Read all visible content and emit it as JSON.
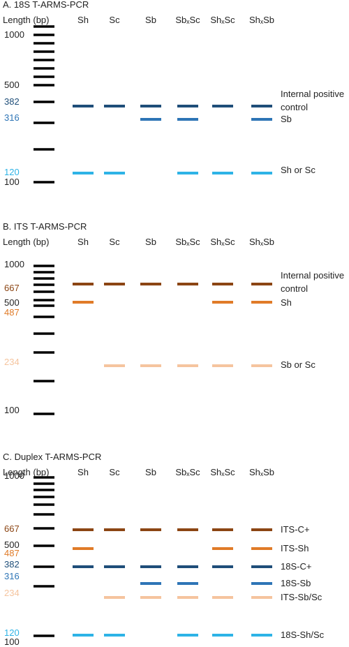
{
  "colors": {
    "ladder": "#000000",
    "blue_dark": "#1f4e79",
    "blue_mid": "#2e75b6",
    "blue_light": "#2eb3e6",
    "brown_dark": "#8b4513",
    "brown_mid": "#e07b28",
    "peach": "#f5c49e"
  },
  "panels": [
    {
      "title": "A. 18S T-ARMS-PCR",
      "length_label": "Length (bp)",
      "lanes": [
        "Sh",
        "Sc",
        "Sb",
        "SbₓSc",
        "ShₓSc",
        "ShₓSb"
      ],
      "ladder_labels": [
        {
          "text": "1000",
          "color": "#222222"
        },
        {
          "text": "500",
          "color": "#222222"
        },
        {
          "text": "382",
          "color": "#1f4e79"
        },
        {
          "text": "316",
          "color": "#2e75b6"
        },
        {
          "text": "120",
          "color": "#2eb3e6"
        },
        {
          "text": "100",
          "color": "#222222"
        }
      ],
      "band_rows": [
        {
          "name": "382",
          "color": "#1f4e79",
          "lanes": [
            1,
            1,
            1,
            1,
            1,
            1
          ],
          "label_lines": [
            "Internal positive",
            "control"
          ]
        },
        {
          "name": "316",
          "color": "#2e75b6",
          "lanes": [
            0,
            0,
            1,
            1,
            0,
            1
          ],
          "label_lines": [
            "Sb"
          ]
        },
        {
          "name": "120",
          "color": "#2eb3e6",
          "lanes": [
            1,
            1,
            0,
            1,
            1,
            1
          ],
          "label_lines": [
            "Sh or Sc"
          ]
        }
      ]
    },
    {
      "title": "B. ITS T-ARMS-PCR",
      "length_label": "Length (bp)",
      "lanes": [
        "Sh",
        "Sc",
        "Sb",
        "SbₓSc",
        "ShₓSc",
        "ShₓSb"
      ],
      "ladder_labels": [
        {
          "text": "1000",
          "color": "#222222"
        },
        {
          "text": "667",
          "color": "#8b4513"
        },
        {
          "text": "500",
          "color": "#222222"
        },
        {
          "text": "487",
          "color": "#e07b28"
        },
        {
          "text": "234",
          "color": "#f5c49e"
        },
        {
          "text": "100",
          "color": "#222222"
        }
      ],
      "band_rows": [
        {
          "name": "667",
          "color": "#8b4513",
          "lanes": [
            1,
            1,
            1,
            1,
            1,
            1
          ],
          "label_lines": [
            "Internal positive",
            "control"
          ]
        },
        {
          "name": "487",
          "color": "#e07b28",
          "lanes": [
            1,
            0,
            0,
            0,
            1,
            1
          ],
          "label_lines": [
            "Sh"
          ]
        },
        {
          "name": "234",
          "color": "#f5c49e",
          "lanes": [
            0,
            1,
            1,
            1,
            1,
            1
          ],
          "label_lines": [
            "Sb or Sc"
          ]
        }
      ]
    },
    {
      "title": "C. Duplex T-ARMS-PCR",
      "length_label": "Length (bp)",
      "lanes": [
        "Sh",
        "Sc",
        "Sb",
        "SbₓSc",
        "ShₓSc",
        "ShₓSb"
      ],
      "ladder_labels": [
        {
          "text": "1000",
          "color": "#222222"
        },
        {
          "text": "667",
          "color": "#8b4513"
        },
        {
          "text": "500",
          "color": "#222222"
        },
        {
          "text": "487",
          "color": "#e07b28"
        },
        {
          "text": "382",
          "color": "#1f4e79"
        },
        {
          "text": "316",
          "color": "#2e75b6"
        },
        {
          "text": "234",
          "color": "#f5c49e"
        },
        {
          "text": "120",
          "color": "#2eb3e6"
        },
        {
          "text": "100",
          "color": "#222222"
        }
      ],
      "band_rows": [
        {
          "name": "667",
          "color": "#8b4513",
          "lanes": [
            1,
            1,
            1,
            1,
            1,
            1
          ],
          "label_lines": [
            "ITS-C+"
          ]
        },
        {
          "name": "487",
          "color": "#e07b28",
          "lanes": [
            1,
            0,
            0,
            0,
            1,
            1
          ],
          "label_lines": [
            "ITS-Sh"
          ]
        },
        {
          "name": "382",
          "color": "#1f4e79",
          "lanes": [
            1,
            1,
            1,
            1,
            1,
            1
          ],
          "label_lines": [
            "18S-C+"
          ]
        },
        {
          "name": "316",
          "color": "#2e75b6",
          "lanes": [
            0,
            0,
            1,
            1,
            0,
            1
          ],
          "label_lines": [
            "18S-Sb"
          ]
        },
        {
          "name": "234",
          "color": "#f5c49e",
          "lanes": [
            0,
            1,
            1,
            1,
            1,
            1
          ],
          "label_lines": [
            "ITS-Sb/Sc"
          ]
        },
        {
          "name": "120",
          "color": "#2eb3e6",
          "lanes": [
            1,
            1,
            0,
            1,
            1,
            1
          ],
          "label_lines": [
            "18S-Sh/Sc"
          ]
        }
      ]
    }
  ]
}
